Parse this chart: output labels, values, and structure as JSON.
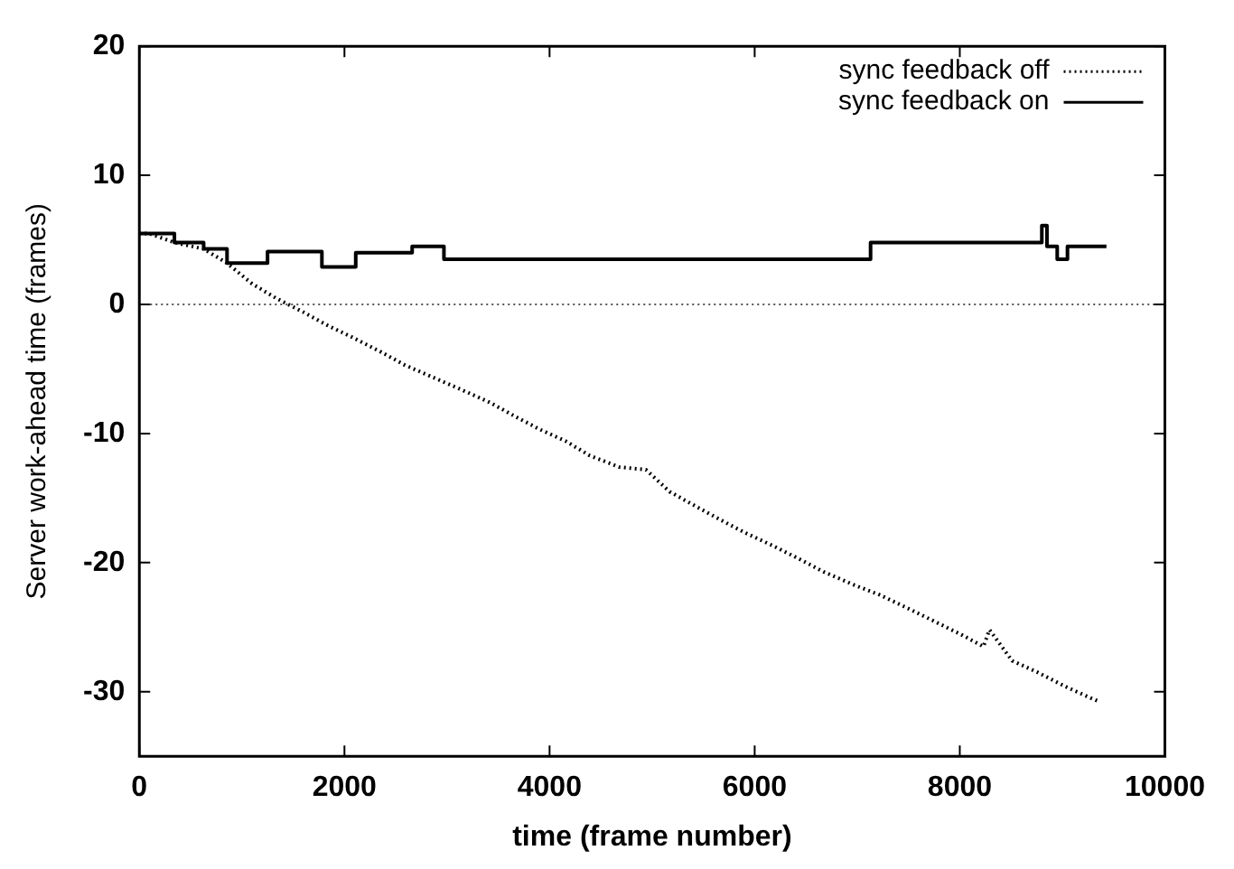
{
  "chart_data": {
    "type": "line",
    "xlabel": "time (frame number)",
    "ylabel": "Server work-ahead time (frames)",
    "xlim": [
      0,
      10000
    ],
    "xticks": [
      0,
      2000,
      4000,
      6000,
      8000,
      10000
    ],
    "ylim": [
      -35,
      20
    ],
    "yticks": [
      -30,
      -20,
      -10,
      0,
      10,
      20
    ],
    "grid": false,
    "legend": "top right",
    "marker": "none",
    "ref_lines": [
      {
        "axis": "y",
        "value": 0,
        "color": "#555555",
        "line_style": "dotted"
      }
    ],
    "series": [
      {
        "name": "sync feedback off",
        "color": "#000000",
        "line_style": "dotted",
        "x": [
          0,
          95,
          342,
          627,
          855,
          1100,
          1330,
          1600,
          1830,
          2090,
          2360,
          2590,
          2850,
          3140,
          3420,
          3670,
          3910,
          4160,
          4390,
          4680,
          4940,
          5170,
          5440,
          5670,
          5910,
          6180,
          6430,
          6670,
          6960,
          7220,
          7510,
          7740,
          8020,
          8230,
          8290,
          8510,
          8760,
          9030,
          9280,
          9370
        ],
        "values": [
          5.5,
          5.5,
          4.8,
          4.3,
          3.2,
          1.6,
          0.5,
          -0.6,
          -1.6,
          -2.6,
          -3.7,
          -4.7,
          -5.6,
          -6.6,
          -7.6,
          -8.7,
          -9.7,
          -10.6,
          -11.7,
          -12.6,
          -12.8,
          -14.5,
          -15.7,
          -16.7,
          -17.7,
          -18.7,
          -19.7,
          -20.7,
          -21.7,
          -22.5,
          -23.6,
          -24.5,
          -25.6,
          -26.5,
          -25.2,
          -27.6,
          -28.5,
          -29.6,
          -30.5,
          -30.8
        ]
      },
      {
        "name": "sync feedback on",
        "color": "#000000",
        "type": "step",
        "line_style": "solid",
        "x": [
          0,
          342,
          627,
          855,
          1250,
          1780,
          2110,
          2660,
          2970,
          7130,
          8800,
          8850,
          8950,
          9050,
          9140,
          9430
        ],
        "values": [
          5.5,
          4.8,
          4.3,
          3.2,
          4.1,
          2.9,
          4.0,
          4.5,
          3.5,
          4.8,
          6.1,
          4.5,
          3.5,
          4.5,
          4.5,
          4.5
        ]
      }
    ]
  }
}
